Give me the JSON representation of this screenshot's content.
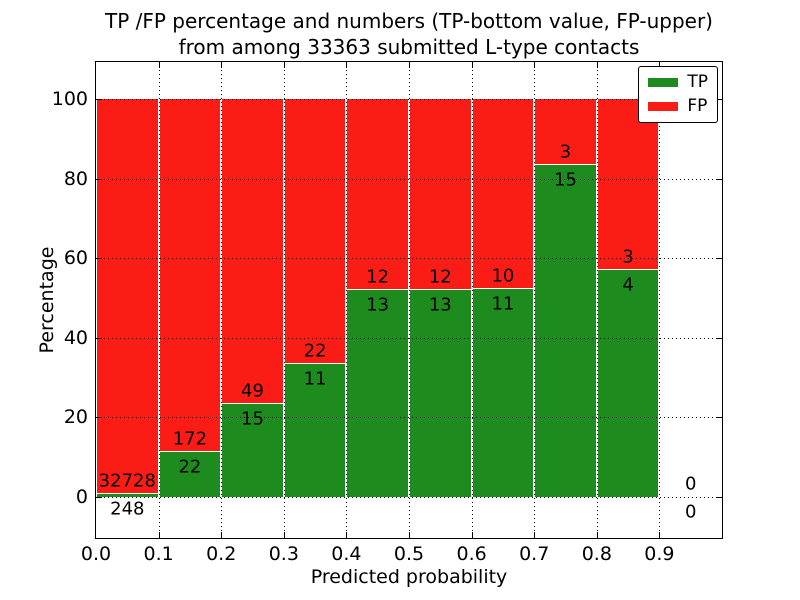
{
  "figure": {
    "title_line1": "TP /FP percentage and numbers (TP-bottom value, FP-upper)",
    "title_line2": "from among 33363 submitted L-type contacts",
    "xlabel": "Predicted probability",
    "ylabel": "Percentage"
  },
  "legend": {
    "items": [
      {
        "label": "TP",
        "color": "#1e8b1e"
      },
      {
        "label": "FP",
        "color": "#fb1d15"
      }
    ]
  },
  "chart_data": {
    "type": "bar",
    "stacked": true,
    "normalized_to_percent": 100,
    "title": "TP /FP percentage and numbers (TP-bottom value, FP-upper) from among 33363 submitted L-type contacts",
    "xlabel": "Predicted probability",
    "ylabel": "Percentage",
    "xlim": [
      0.0,
      1.0
    ],
    "ylim": [
      -10,
      110
    ],
    "xticks": [
      "0.0",
      "0.1",
      "0.2",
      "0.3",
      "0.4",
      "0.5",
      "0.6",
      "0.7",
      "0.8",
      "0.9"
    ],
    "yticks": [
      0,
      20,
      40,
      60,
      80,
      100
    ],
    "grid": "dotted, drawn over bars",
    "legend_position": "upper right",
    "total_submitted": 33363,
    "series_names": [
      "TP",
      "FP"
    ],
    "colors": {
      "tp": "#1e8b1e",
      "fp": "#fb1d15"
    },
    "annotation_note": "TP count below segment boundary, FP count above",
    "bins": [
      {
        "x_range": [
          0.0,
          0.1
        ],
        "tp": 248,
        "fp": 32728,
        "tp_pct": 0.75
      },
      {
        "x_range": [
          0.1,
          0.2
        ],
        "tp": 22,
        "fp": 172,
        "tp_pct": 11.34
      },
      {
        "x_range": [
          0.2,
          0.3
        ],
        "tp": 15,
        "fp": 49,
        "tp_pct": 23.44
      },
      {
        "x_range": [
          0.3,
          0.4
        ],
        "tp": 11,
        "fp": 22,
        "tp_pct": 33.33
      },
      {
        "x_range": [
          0.4,
          0.5
        ],
        "tp": 13,
        "fp": 12,
        "tp_pct": 52.0
      },
      {
        "x_range": [
          0.5,
          0.6
        ],
        "tp": 13,
        "fp": 12,
        "tp_pct": 52.0
      },
      {
        "x_range": [
          0.6,
          0.7
        ],
        "tp": 11,
        "fp": 10,
        "tp_pct": 52.38
      },
      {
        "x_range": [
          0.7,
          0.8
        ],
        "tp": 15,
        "fp": 3,
        "tp_pct": 83.33
      },
      {
        "x_range": [
          0.8,
          0.9
        ],
        "tp": 4,
        "fp": 3,
        "tp_pct": 57.14
      },
      {
        "x_range": [
          0.9,
          1.0
        ],
        "tp": 0,
        "fp": 0,
        "tp_pct": null
      }
    ]
  }
}
